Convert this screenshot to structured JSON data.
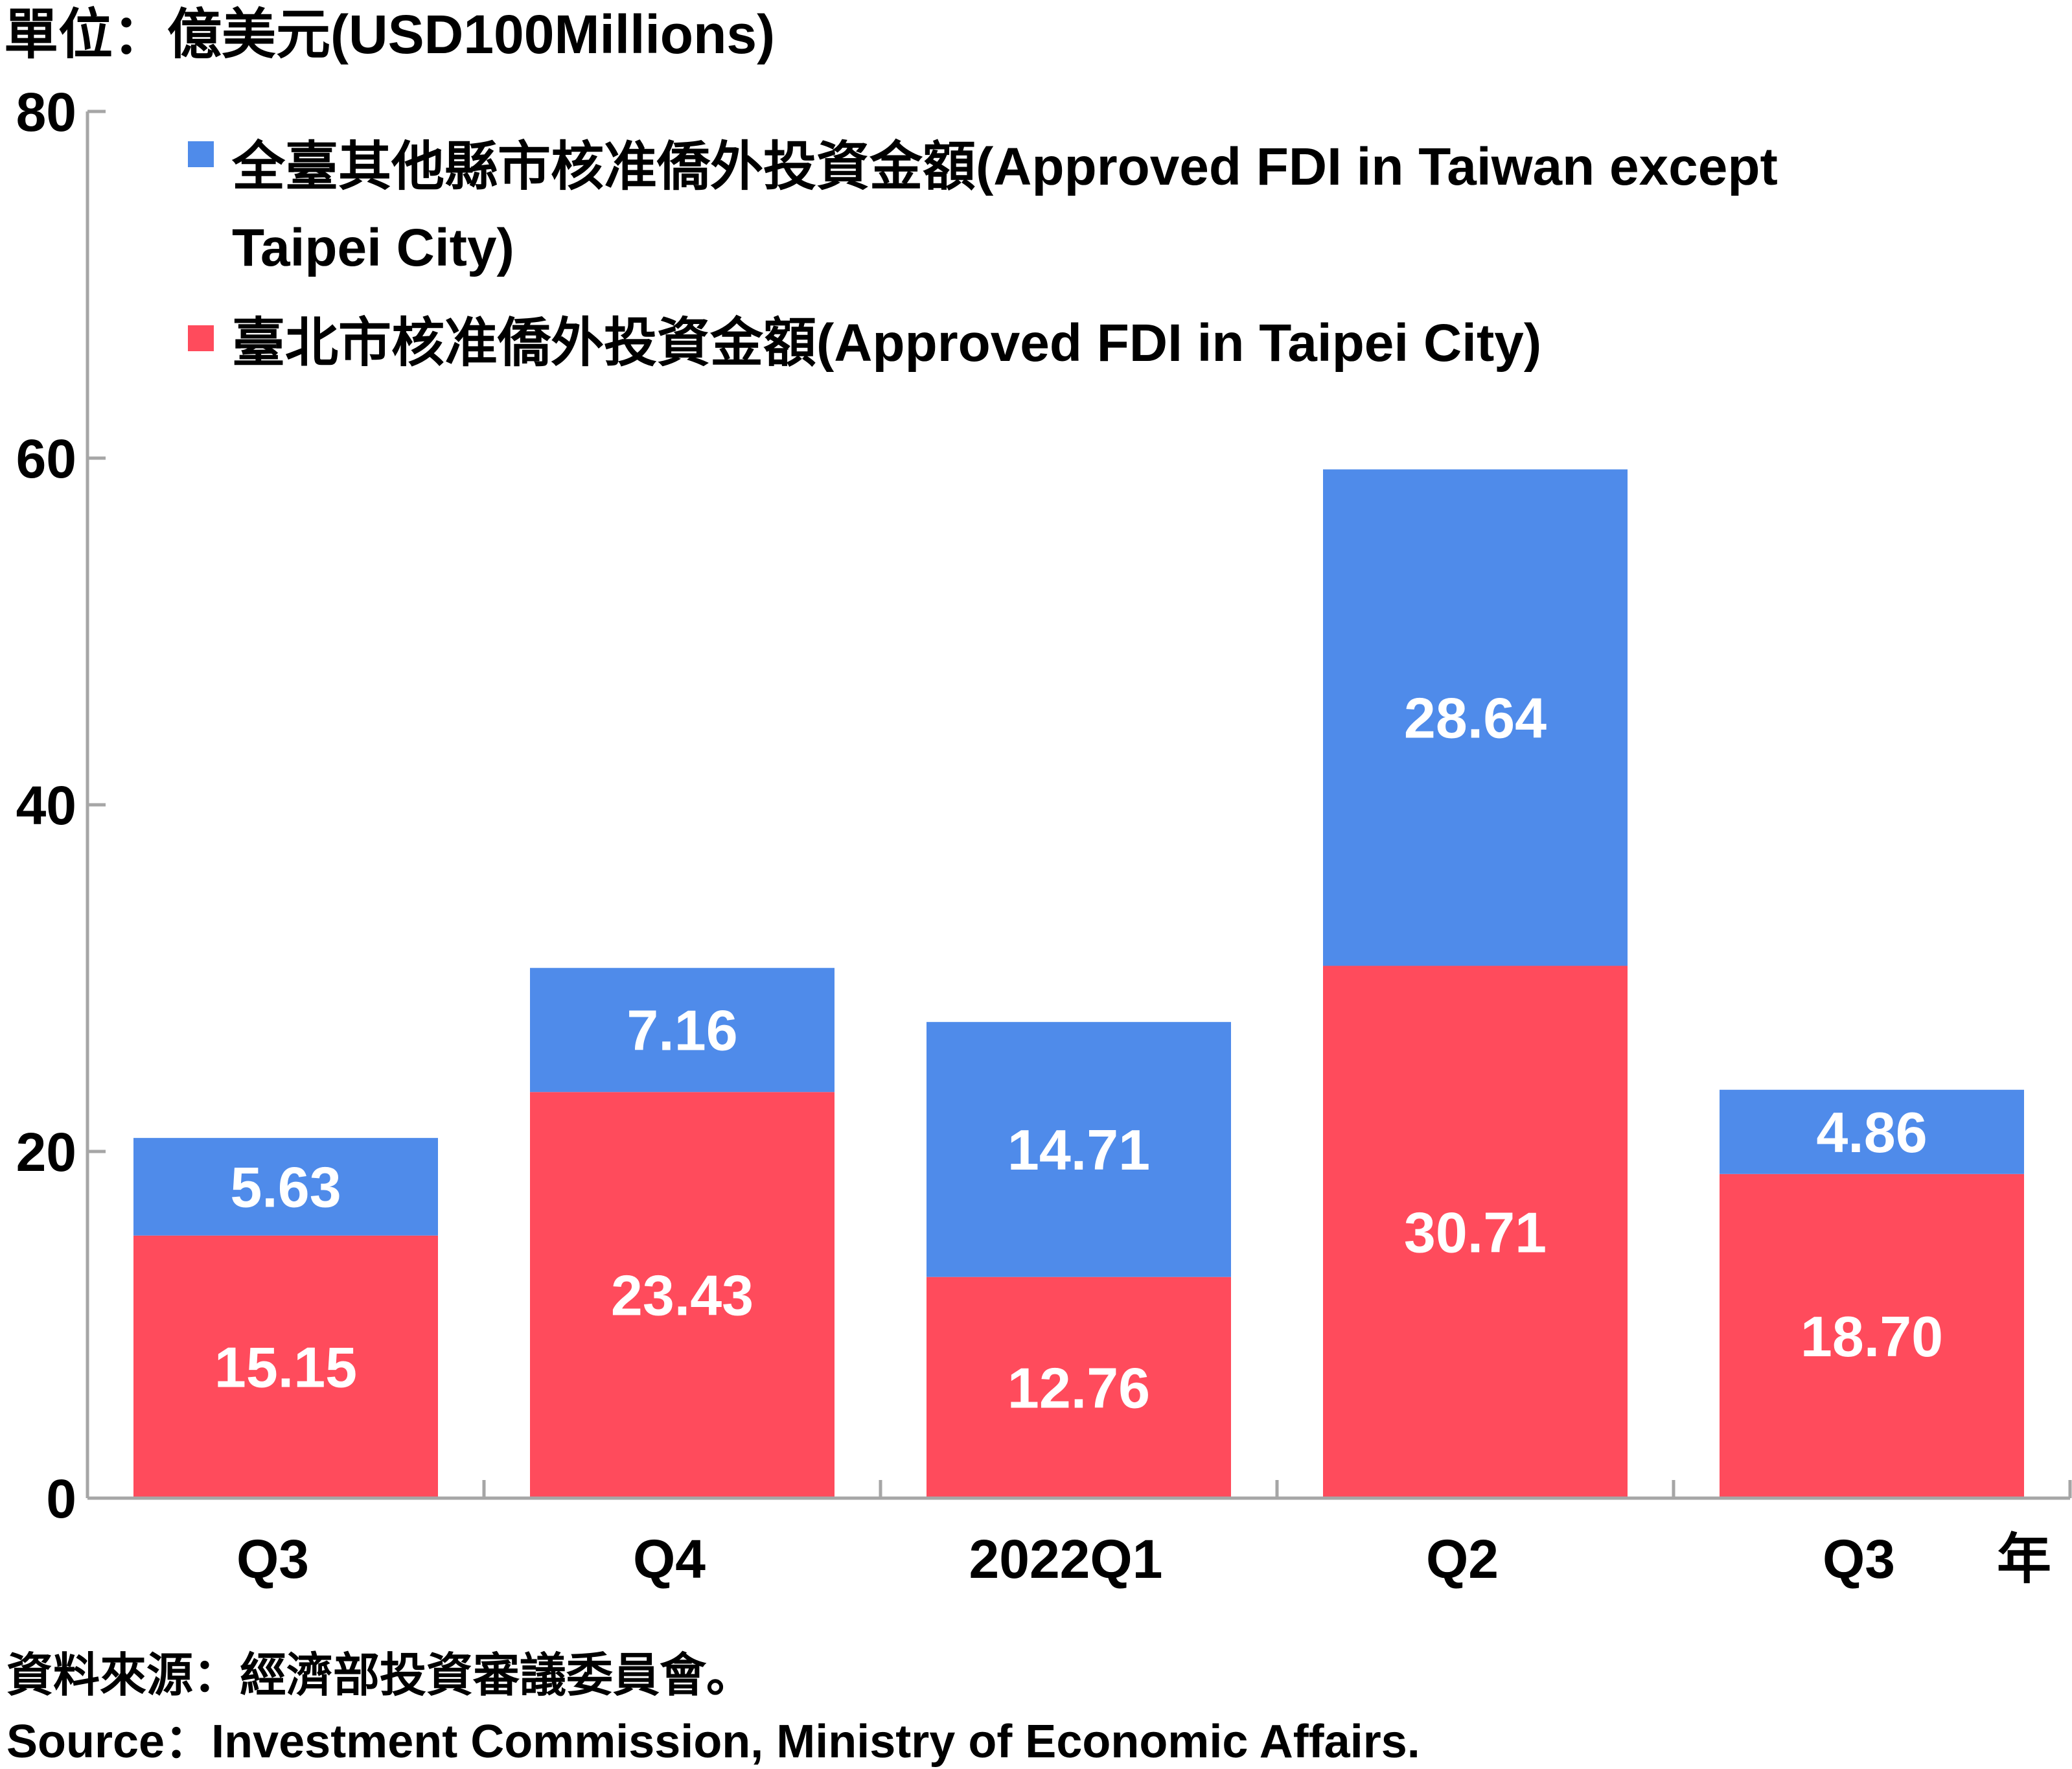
{
  "unit_label": "單位：億美元(USD100Millions)",
  "x_unit": "年",
  "source_zh": "資料來源：經濟部投資審議委員會。",
  "source_en": "Source：Investment Commission, Ministry of Economic Affairs.",
  "colors": {
    "taipei": "#FF4B5C",
    "other": "#4F8BEA",
    "axis": "#A6A6A6"
  },
  "chart_data": {
    "type": "bar",
    "stacked": true,
    "title": "",
    "xlabel": "",
    "ylabel": "單位：億美元(USD100Millions)",
    "ylim": [
      0,
      80
    ],
    "yticks": [
      "0",
      "20",
      "40",
      "60",
      "80"
    ],
    "grid": false,
    "legend_position": "top",
    "categories": [
      "Q3",
      "Q4",
      "2022Q1",
      "Q2",
      "Q3"
    ],
    "series": [
      {
        "name": "臺北市核准僑外投資金額(Approved FDI in Taipei City)",
        "values": [
          15.15,
          23.43,
          12.76,
          30.71,
          18.7
        ],
        "labels": [
          "15.15",
          "23.43",
          "12.76",
          "30.71",
          "18.70"
        ]
      },
      {
        "name": "全臺其他縣市核准僑外投資金額(Approved FDI in Taiwan except Taipei City)",
        "values": [
          5.63,
          7.16,
          14.71,
          28.64,
          4.86
        ],
        "labels": [
          "5.63",
          "7.16",
          "14.71",
          "28.64",
          "4.86"
        ]
      }
    ],
    "legend": [
      {
        "line1": "全臺其他縣市核准僑外投資金額(Approved FDI in Taiwan except",
        "line2": "Taipei City)"
      },
      {
        "line1": "臺北市核准僑外投資金額(Approved FDI in Taipei City)"
      }
    ]
  }
}
